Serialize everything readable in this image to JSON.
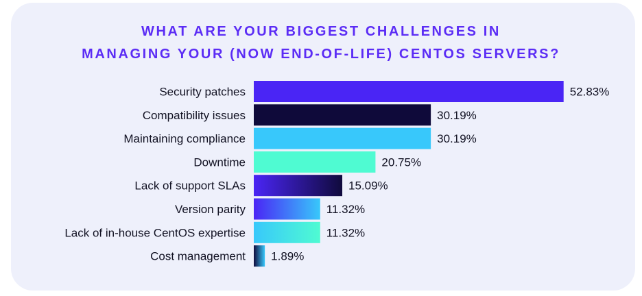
{
  "chart_data": {
    "type": "bar",
    "orientation": "horizontal",
    "title_lines": [
      "WHAT ARE YOUR BIGGEST CHALLENGES IN",
      "MANAGING YOUR (NOW END-OF-LIFE) CENTOS SERVERS?"
    ],
    "categories": [
      "Security patches",
      "Compatibility issues",
      "Maintaining compliance",
      "Downtime",
      "Lack of support SLAs",
      "Version parity",
      "Lack of in-house CentOS expertise",
      "Cost management"
    ],
    "values": [
      52.83,
      30.19,
      30.19,
      20.75,
      15.09,
      11.32,
      11.32,
      1.89
    ],
    "value_labels": [
      "52.83%",
      "30.19%",
      "30.19%",
      "20.75%",
      "15.09%",
      "11.32%",
      "11.32%",
      "1.89%"
    ],
    "units": "%",
    "bar_colors": [
      [
        "#4a25f5",
        "#4a25f5"
      ],
      [
        "#0f0a3a",
        "#0f0a3a"
      ],
      [
        "#38c8fb",
        "#38c8fb"
      ],
      [
        "#4ffbd2",
        "#4ffbd2"
      ],
      [
        "#4a25f5",
        "#100a3c"
      ],
      [
        "#4a25f5",
        "#38c8fb"
      ],
      [
        "#38c8fb",
        "#4ffbd2"
      ],
      [
        "#100a3c",
        "#38c8fb"
      ]
    ],
    "title_color": "#5b2cf5",
    "background_color": "#eef0fb",
    "grid": false,
    "legend": "none"
  }
}
